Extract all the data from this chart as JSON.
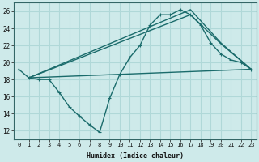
{
  "bg_color": "#ceeaea",
  "grid_color": "#b0d8d8",
  "line_color": "#1a6b6b",
  "xlabel": "Humidex (Indice chaleur)",
  "ylim": [
    11,
    27
  ],
  "xlim": [
    -0.5,
    23.5
  ],
  "yticks": [
    12,
    14,
    16,
    18,
    20,
    22,
    24,
    26
  ],
  "xticks": [
    0,
    1,
    2,
    3,
    4,
    5,
    6,
    7,
    8,
    9,
    10,
    11,
    12,
    13,
    14,
    15,
    16,
    17,
    18,
    19,
    20,
    21,
    22,
    23
  ],
  "series1_x": [
    0,
    1,
    2,
    3,
    4,
    5,
    6,
    7,
    8,
    9,
    10,
    11,
    12,
    13,
    14,
    15,
    16,
    17,
    18,
    19,
    20,
    21,
    22,
    23
  ],
  "series1_y": [
    19.2,
    18.2,
    18.0,
    18.0,
    16.5,
    14.8,
    13.7,
    12.7,
    11.8,
    15.8,
    18.6,
    20.6,
    22.0,
    24.4,
    25.6,
    25.6,
    26.2,
    25.6,
    24.4,
    22.3,
    21.0,
    20.3,
    20.0,
    19.2
  ],
  "series2_x": [
    1,
    17,
    20,
    23
  ],
  "series2_y": [
    18.2,
    26.2,
    22.3,
    19.2
  ],
  "series3_x": [
    1,
    17,
    20,
    23
  ],
  "series3_y": [
    18.2,
    25.6,
    22.2,
    19.2
  ],
  "series4_x": [
    1,
    23
  ],
  "series4_y": [
    18.2,
    19.2
  ]
}
